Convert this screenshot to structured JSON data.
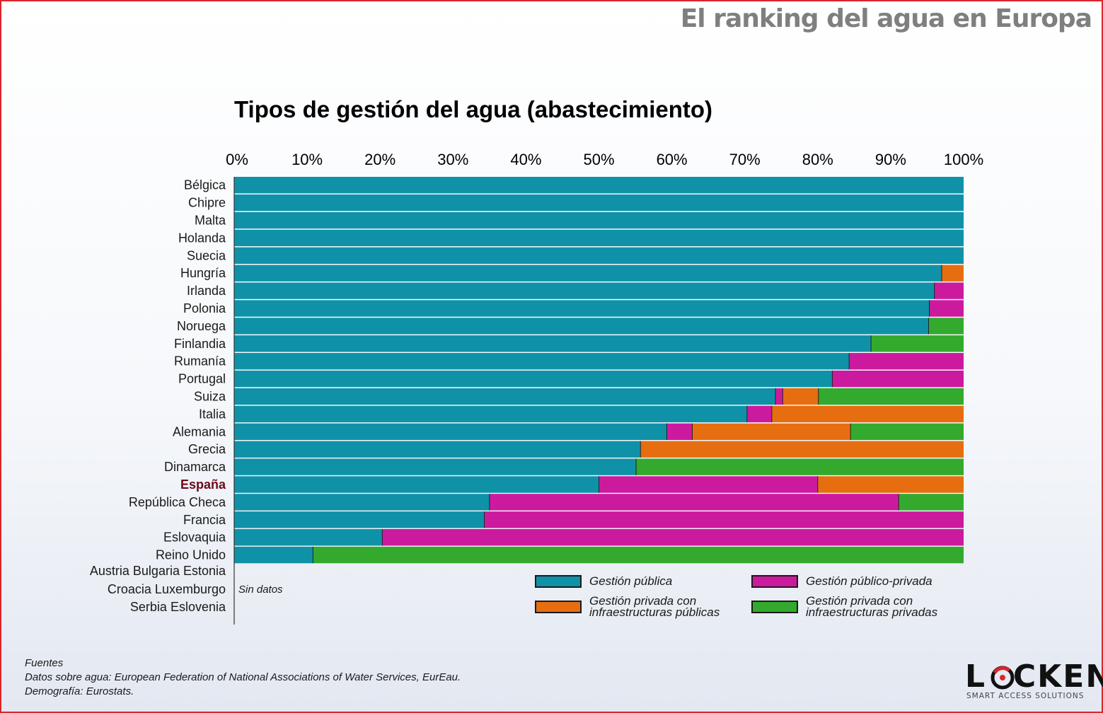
{
  "header": {
    "title": "El ranking del agua en Europa"
  },
  "chart_data": {
    "type": "bar",
    "orientation": "horizontal",
    "stacked": true,
    "title": "Tipos de gestión del agua (abastecimiento)",
    "xlim": [
      0,
      100
    ],
    "x_ticks": [
      "0%",
      "10%",
      "20%",
      "30%",
      "40%",
      "50%",
      "60%",
      "70%",
      "80%",
      "90%",
      "100%"
    ],
    "categories": [
      "Bélgica",
      "Chipre",
      "Malta",
      "Holanda",
      "Suecia",
      "Hungría",
      "Irlanda",
      "Polonia",
      "Noruega",
      "Finlandia",
      "Rumanía",
      "Portugal",
      "Suiza",
      "Italia",
      "Alemania",
      "Grecia",
      "Dinamarca",
      "España",
      "República  Checa",
      "Francia",
      "Eslovaquia",
      "Reino  Unido"
    ],
    "highlight_category": "España",
    "series": [
      {
        "name": "Gestión pública",
        "color": "#0f92a8",
        "values": [
          100,
          100,
          100,
          100,
          100,
          97,
          96,
          95.3,
          95.2,
          87.3,
          84.3,
          82,
          74.2,
          70.3,
          59.3,
          55.7,
          55.1,
          50,
          35,
          34.3,
          20.3,
          10.8
        ]
      },
      {
        "name": "Gestión público-privada",
        "color": "#cc1a9e",
        "values": [
          0,
          0,
          0,
          0,
          0,
          0,
          4,
          4.7,
          0,
          0,
          15.7,
          18,
          1,
          3.4,
          3.5,
          0,
          0,
          30,
          56.1,
          65.7,
          79.7,
          0
        ]
      },
      {
        "name": "Gestión privada con\ninfraestructuras públicas",
        "color": "#e66e10",
        "values": [
          0,
          0,
          0,
          0,
          0,
          3,
          0,
          0,
          0,
          0,
          0,
          0,
          4.9,
          26.3,
          21.7,
          44.3,
          0,
          20,
          0,
          0,
          0,
          0
        ]
      },
      {
        "name": "Gestión privada con\ninfraestructuras privadas",
        "color": "#33aa2d",
        "values": [
          0,
          0,
          0,
          0,
          0,
          0,
          0,
          0,
          4.8,
          12.7,
          0,
          0,
          19.9,
          0,
          15.5,
          0,
          44.9,
          0,
          8.9,
          0,
          0,
          89.2
        ]
      }
    ],
    "no_data": {
      "rows": [
        "Austria Bulgaria Estonia",
        "Croacia Luxemburgo",
        "Serbia Eslovenia"
      ],
      "note": "Sin datos"
    },
    "legend_position": "bottom-right, inside"
  },
  "legend_order": [
    0,
    1,
    2,
    3
  ],
  "sources": {
    "heading": "Fuentes",
    "line1": "Datos sobre agua: European Federation of National Associations of Water Services, EurEau.",
    "line2": "Demografía: Eurostats."
  },
  "logo": {
    "word": "LOCKEN",
    "tagline": "SMART ACCESS SOLUTIONS",
    "ring_color": "#d9262c"
  }
}
